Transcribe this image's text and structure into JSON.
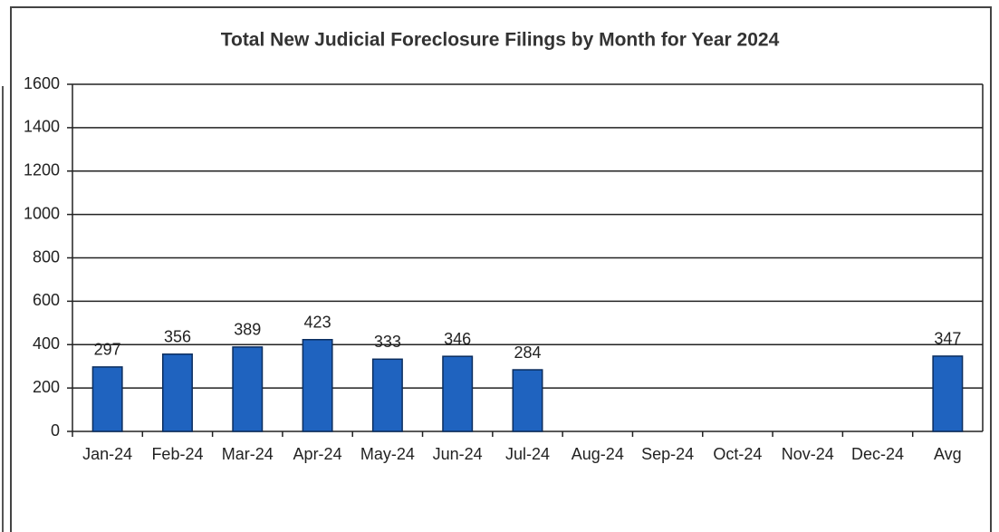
{
  "chart_data": {
    "type": "bar",
    "title": "Total New Judicial Foreclosure Filings by Month for Year 2024",
    "categories": [
      "Jan-24",
      "Feb-24",
      "Mar-24",
      "Apr-24",
      "May-24",
      "Jun-24",
      "Jul-24",
      "Aug-24",
      "Sep-24",
      "Oct-24",
      "Nov-24",
      "Dec-24",
      "Avg"
    ],
    "values": [
      297,
      356,
      389,
      423,
      333,
      346,
      284,
      null,
      null,
      null,
      null,
      null,
      347
    ],
    "color": "#1f63bf",
    "ylim": [
      0,
      1600
    ],
    "yticks": [
      0,
      200,
      400,
      600,
      800,
      1000,
      1200,
      1400,
      1600
    ],
    "grid": true
  }
}
